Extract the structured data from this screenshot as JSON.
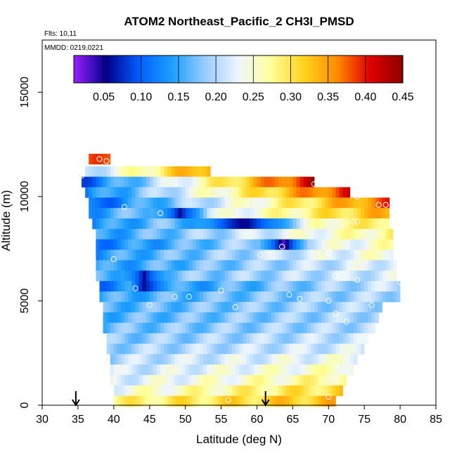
{
  "chart_data": {
    "type": "heatmap",
    "title": "ATOM2 Northeast_Pacific_2 CH3I_PMSD",
    "flights_label": "Flts: 10,11",
    "dates_label": "MMDD: 0219,0221",
    "xlabel": "Latitude (deg N)",
    "ylabel": "Altitude (m)",
    "xlim": [
      30,
      85
    ],
    "ylim": [
      0,
      17500
    ],
    "x_ticks": [
      30,
      35,
      40,
      45,
      50,
      55,
      60,
      65,
      70,
      75,
      80,
      85
    ],
    "y_ticks": [
      0,
      5000,
      10000,
      15000
    ],
    "colorbar": {
      "range": [
        0.01,
        0.45
      ],
      "ticks": [
        "0.05",
        "0.10",
        "0.15",
        "0.20",
        "0.25",
        "0.30",
        "0.35",
        "0.40",
        "0.45"
      ],
      "colors": [
        "#9a20ff",
        "#00008b",
        "#0060ff",
        "#1ea0ff",
        "#99ccff",
        "#eef6ff",
        "#ffff99",
        "#ffd21e",
        "#ff8c00",
        "#e00000",
        "#8b0000"
      ]
    },
    "arrows_at_latitude": [
      34.7,
      61.2
    ],
    "bands": [
      {
        "alt": 11800,
        "from": 36.5,
        "to": 39.5,
        "ends": [
          0.36,
          0.4
        ]
      },
      {
        "alt": 11200,
        "from": 36.0,
        "to": 53.5,
        "ends": [
          0.2,
          0.36
        ]
      },
      {
        "alt": 10700,
        "from": 35.5,
        "to": 68.0,
        "ends": [
          0.1,
          0.42
        ]
      },
      {
        "alt": 10200,
        "from": 36.0,
        "to": 73.0,
        "ends": [
          0.12,
          0.4
        ]
      },
      {
        "alt": 9700,
        "from": 36.5,
        "to": 78.5,
        "ends": [
          0.1,
          0.38
        ]
      },
      {
        "alt": 9200,
        "from": 36.5,
        "to": 78.5,
        "ends": [
          0.14,
          0.34
        ]
      },
      {
        "alt": 8700,
        "from": 37.0,
        "to": 78.5,
        "ends": [
          0.13,
          0.3
        ]
      },
      {
        "alt": 8200,
        "from": 37.5,
        "to": 79.0,
        "ends": [
          0.14,
          0.28
        ]
      },
      {
        "alt": 7700,
        "from": 37.5,
        "to": 79.0,
        "ends": [
          0.12,
          0.26
        ]
      },
      {
        "alt": 7200,
        "from": 37.5,
        "to": 79.0,
        "ends": [
          0.14,
          0.25
        ]
      },
      {
        "alt": 6700,
        "from": 37.5,
        "to": 79.5,
        "ends": [
          0.14,
          0.23
        ]
      },
      {
        "alt": 6200,
        "from": 37.5,
        "to": 79.5,
        "ends": [
          0.16,
          0.22
        ]
      },
      {
        "alt": 5700,
        "from": 38.0,
        "to": 80.0,
        "ends": [
          0.12,
          0.21
        ]
      },
      {
        "alt": 5200,
        "from": 38.0,
        "to": 80.0,
        "ends": [
          0.15,
          0.2
        ]
      },
      {
        "alt": 4700,
        "from": 38.5,
        "to": 77.5,
        "ends": [
          0.16,
          0.2
        ]
      },
      {
        "alt": 4200,
        "from": 38.5,
        "to": 77.0,
        "ends": [
          0.16,
          0.2
        ]
      },
      {
        "alt": 3700,
        "from": 38.5,
        "to": 76.5,
        "ends": [
          0.17,
          0.2
        ]
      },
      {
        "alt": 3200,
        "from": 39.0,
        "to": 75.5,
        "ends": [
          0.18,
          0.21
        ]
      },
      {
        "alt": 2700,
        "from": 39.0,
        "to": 75.0,
        "ends": [
          0.19,
          0.22
        ]
      },
      {
        "alt": 2200,
        "from": 39.5,
        "to": 74.0,
        "ends": [
          0.2,
          0.24
        ]
      },
      {
        "alt": 1700,
        "from": 39.5,
        "to": 73.5,
        "ends": [
          0.21,
          0.26
        ]
      },
      {
        "alt": 1200,
        "from": 39.5,
        "to": 72.5,
        "ends": [
          0.22,
          0.28
        ]
      },
      {
        "alt": 700,
        "from": 40.0,
        "to": 72.0,
        "ends": [
          0.24,
          0.31
        ]
      },
      {
        "alt": 200,
        "from": 40.0,
        "to": 71.0,
        "ends": [
          0.28,
          0.33
        ]
      }
    ],
    "dark_spots": [
      {
        "alt": 9200,
        "from": 45.0,
        "to": 53.0,
        "value": 0.06
      },
      {
        "alt": 8700,
        "from": 48.0,
        "to": 68.0,
        "value": 0.05
      },
      {
        "alt": 7700,
        "from": 60.0,
        "to": 67.0,
        "value": 0.03
      },
      {
        "alt": 6200,
        "from": 41.0,
        "to": 47.0,
        "value": 0.06
      },
      {
        "alt": 5700,
        "from": 42.0,
        "to": 46.0,
        "value": 0.06
      }
    ],
    "points": [
      {
        "lat": 35.5,
        "alt": 11000
      },
      {
        "lat": 38.0,
        "alt": 11800
      },
      {
        "lat": 39.0,
        "alt": 11700
      },
      {
        "lat": 41.5,
        "alt": 9500
      },
      {
        "lat": 46.5,
        "alt": 9200
      },
      {
        "lat": 58.5,
        "alt": 9600
      },
      {
        "lat": 68.0,
        "alt": 10600
      },
      {
        "lat": 74.0,
        "alt": 10000
      },
      {
        "lat": 77.0,
        "alt": 9600
      },
      {
        "lat": 78.0,
        "alt": 9600
      },
      {
        "lat": 73.5,
        "alt": 8800
      },
      {
        "lat": 74.0,
        "alt": 8800
      },
      {
        "lat": 40.0,
        "alt": 7000
      },
      {
        "lat": 60.5,
        "alt": 7200
      },
      {
        "lat": 63.5,
        "alt": 7600
      },
      {
        "lat": 70.0,
        "alt": 7300
      },
      {
        "lat": 71.0,
        "alt": 6200
      },
      {
        "lat": 43.0,
        "alt": 5600
      },
      {
        "lat": 55.0,
        "alt": 5500
      },
      {
        "lat": 74.0,
        "alt": 6000
      },
      {
        "lat": 80.0,
        "alt": 5900
      },
      {
        "lat": 45.0,
        "alt": 4800
      },
      {
        "lat": 48.5,
        "alt": 5200
      },
      {
        "lat": 50.5,
        "alt": 5200
      },
      {
        "lat": 57.0,
        "alt": 4700
      },
      {
        "lat": 64.5,
        "alt": 5300
      },
      {
        "lat": 66.0,
        "alt": 5100
      },
      {
        "lat": 70.0,
        "alt": 5000
      },
      {
        "lat": 71.0,
        "alt": 4400
      },
      {
        "lat": 72.5,
        "alt": 4000
      },
      {
        "lat": 76.0,
        "alt": 4800
      },
      {
        "lat": 71.0,
        "alt": 1900
      },
      {
        "lat": 71.0,
        "alt": 1300
      },
      {
        "lat": 56.0,
        "alt": 250
      },
      {
        "lat": 70.0,
        "alt": 400
      }
    ]
  }
}
